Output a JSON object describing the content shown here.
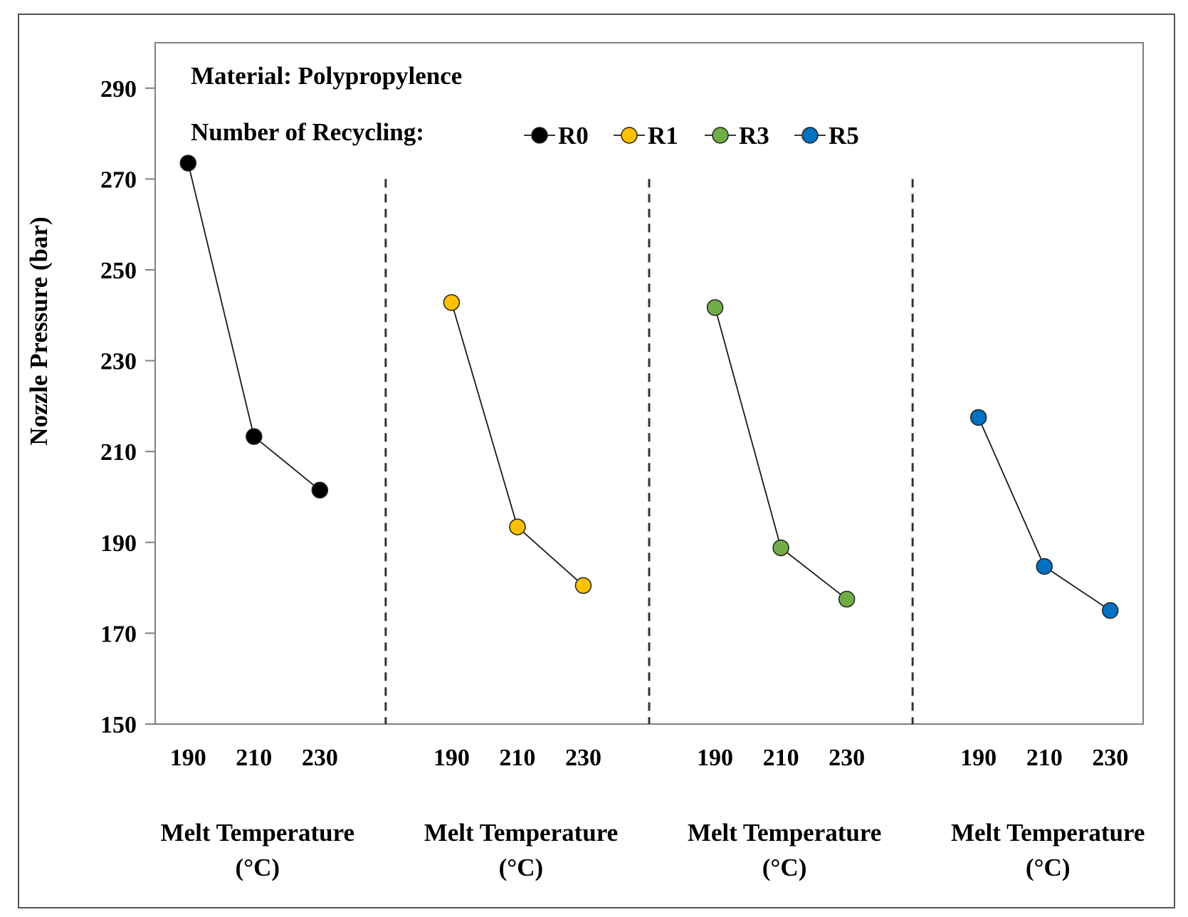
{
  "chart_data": {
    "type": "line",
    "annotation": "Material: Polypropylence",
    "legend_title": "Number of Recycling:",
    "ylabel": "Nozzle Pressure (bar)",
    "ylim": [
      150,
      300
    ],
    "yticks": [
      150,
      170,
      190,
      210,
      230,
      250,
      270,
      290
    ],
    "x": [
      190,
      210,
      230
    ],
    "xlabel_line1": "Melt Temperature",
    "xlabel_line2": "(°C)",
    "series": [
      {
        "name": "R0",
        "color": "#000000",
        "values": [
          273.5,
          213.3,
          201.5
        ]
      },
      {
        "name": "R1",
        "color": "#FFC000",
        "values": [
          242.8,
          193.4,
          180.5
        ]
      },
      {
        "name": "R3",
        "color": "#70AD47",
        "values": [
          241.7,
          188.8,
          177.5
        ]
      },
      {
        "name": "R5",
        "color": "#0070C0",
        "values": [
          217.5,
          184.7,
          175.0
        ]
      }
    ]
  }
}
